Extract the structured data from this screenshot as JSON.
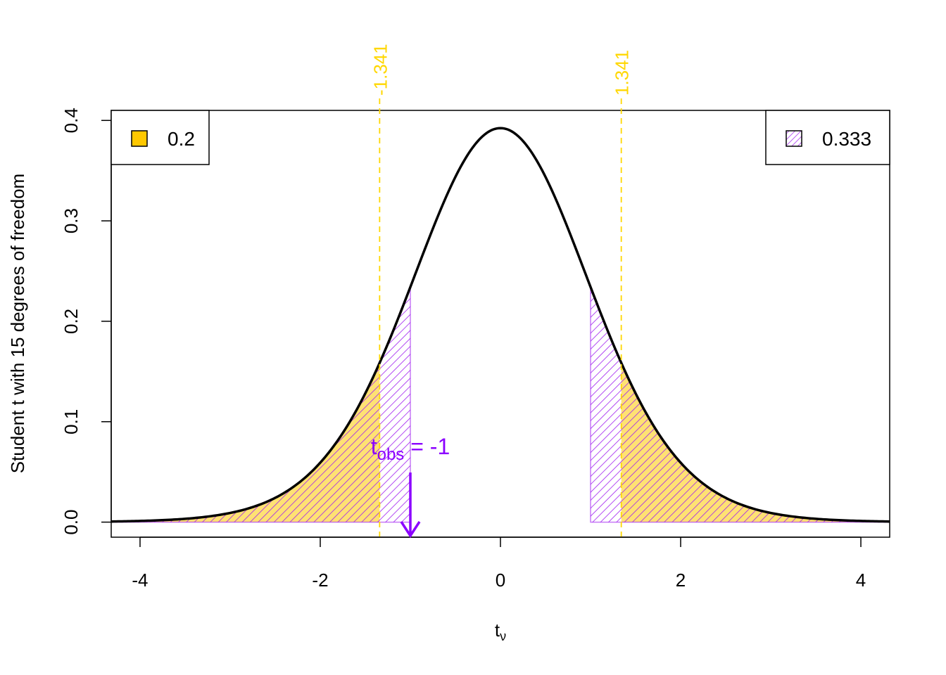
{
  "chart_data": {
    "type": "area",
    "distribution": "student-t",
    "degrees_of_freedom": 15,
    "xlabel": "t",
    "xlabel_sub": "ν",
    "ylabel": "Student t with 15 degrees of freedom",
    "xlim": [
      -4.32,
      4.32
    ],
    "ylim": [
      -0.015,
      0.41
    ],
    "x_ticks": [
      -4,
      -2,
      0,
      2,
      4
    ],
    "y_ticks": [
      0.0,
      0.1,
      0.2,
      0.3,
      0.4
    ],
    "x_tick_labels": [
      "-4",
      "-2",
      "0",
      "2",
      "4"
    ],
    "y_tick_labels": [
      "0.0",
      "0.1",
      "0.2",
      "0.3",
      "0.4"
    ],
    "critical_values": [
      -1.341,
      1.341
    ],
    "critical_labels": [
      "-1.341",
      "1.341"
    ],
    "t_obs": -1,
    "t_obs_label_main": "t",
    "t_obs_label_sub": "obs",
    "t_obs_label_rest": " = -1",
    "alpha_legend": {
      "label": "0.2",
      "placement": "top-left"
    },
    "pvalue_legend": {
      "label": "0.333",
      "placement": "top-right"
    },
    "colors": {
      "curve": "#000000",
      "alpha_fill": "#FFC800",
      "pvalue_hatch": "#A020F0",
      "critical_line": "#FFD700",
      "t_obs": "#8B00FF"
    }
  }
}
